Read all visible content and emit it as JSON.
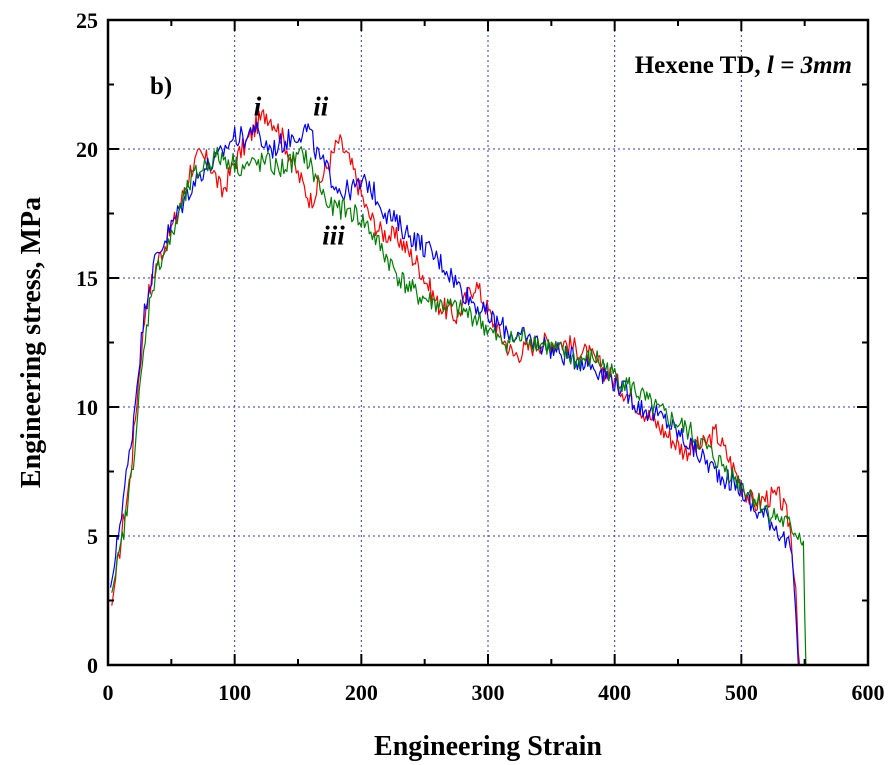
{
  "chart_data": {
    "type": "line",
    "title": "",
    "xlabel": "Engineering Strain",
    "ylabel": "Engineering stress, MPa",
    "xlim": [
      0,
      600
    ],
    "ylim": [
      0,
      25
    ],
    "xticks": [
      0,
      100,
      200,
      300,
      400,
      500,
      600
    ],
    "yticks": [
      0,
      5,
      10,
      15,
      20,
      25
    ],
    "grid": true,
    "panel_label": "b)",
    "annotation": {
      "prefix": "Hexene TD, ",
      "var": "l",
      "suffix": " = 3mm"
    },
    "curve_labels": [
      {
        "text": "i",
        "x": 118,
        "y": 21.3
      },
      {
        "text": "ii",
        "x": 168,
        "y": 21.3
      },
      {
        "text": "iii",
        "x": 178,
        "y": 16.3
      }
    ],
    "series": [
      {
        "color": "#ff0000",
        "x": [
          3,
          5,
          8,
          12,
          18,
          24,
          30,
          38,
          45,
          55,
          65,
          72,
          80,
          90,
          100,
          110,
          118,
          125,
          132,
          140,
          150,
          160,
          168,
          175,
          182,
          188,
          195,
          205,
          215,
          230,
          245,
          260,
          275,
          290,
          305,
          320,
          340,
          360,
          380,
          400,
          420,
          440,
          455,
          470,
          480,
          490,
          500,
          510,
          520,
          530,
          538,
          543,
          545,
          546
        ],
        "y": [
          2.3,
          3.0,
          4.0,
          5.5,
          7.5,
          11.0,
          14.0,
          15.5,
          16.3,
          17.5,
          19.2,
          19.7,
          19.5,
          18.3,
          19.5,
          20.3,
          21.0,
          21.4,
          21.0,
          20.2,
          19.0,
          18.0,
          18.8,
          19.5,
          20.3,
          19.8,
          19.0,
          17.5,
          16.8,
          16.5,
          15.5,
          14.0,
          13.5,
          14.8,
          13.2,
          12.0,
          12.5,
          12.5,
          12.0,
          11.0,
          10.0,
          9.0,
          8.3,
          8.5,
          9.0,
          8.0,
          7.0,
          6.2,
          6.5,
          6.5,
          5.5,
          3.0,
          0.5,
          0
        ]
      },
      {
        "color": "#0000ff",
        "x": [
          2,
          5,
          8,
          12,
          18,
          24,
          30,
          38,
          45,
          55,
          65,
          75,
          85,
          95,
          100,
          110,
          115,
          120,
          130,
          140,
          150,
          158,
          165,
          175,
          185,
          195,
          205,
          210,
          220,
          235,
          250,
          265,
          280,
          300,
          320,
          340,
          360,
          380,
          400,
          420,
          440,
          460,
          480,
          500,
          510,
          520,
          530,
          536,
          540,
          543,
          545
        ],
        "y": [
          3.0,
          3.8,
          5.0,
          6.5,
          8.5,
          11.5,
          14.2,
          15.8,
          16.5,
          17.5,
          18.5,
          19.2,
          19.5,
          20.2,
          20.5,
          20.4,
          21.0,
          20.3,
          20.0,
          20.3,
          20.6,
          20.8,
          19.8,
          19.0,
          18.3,
          18.5,
          18.7,
          18.3,
          17.5,
          16.8,
          16.2,
          15.5,
          14.5,
          13.5,
          12.8,
          12.5,
          12.0,
          11.7,
          11.0,
          10.0,
          9.5,
          8.5,
          7.5,
          6.8,
          6.0,
          5.8,
          5.2,
          4.7,
          4.3,
          2.0,
          0
        ]
      },
      {
        "color": "#008000",
        "x": [
          3,
          6,
          10,
          15,
          20,
          27,
          34,
          42,
          50,
          58,
          66,
          75,
          85,
          95,
          105,
          115,
          125,
          135,
          145,
          155,
          165,
          175,
          185,
          195,
          205,
          215,
          230,
          245,
          260,
          275,
          290,
          310,
          330,
          350,
          370,
          385,
          400,
          415,
          430,
          445,
          460,
          480,
          500,
          520,
          540,
          547,
          549,
          550,
          551
        ],
        "y": [
          2.8,
          3.5,
          4.5,
          6.0,
          8.0,
          11.5,
          14.5,
          15.8,
          16.5,
          17.8,
          18.8,
          19.3,
          19.7,
          19.6,
          19.3,
          19.4,
          19.5,
          19.2,
          19.5,
          19.8,
          18.8,
          17.7,
          17.7,
          17.5,
          17.0,
          16.2,
          15.0,
          14.3,
          14.0,
          13.8,
          13.5,
          12.5,
          12.7,
          12.3,
          11.8,
          11.9,
          11.2,
          10.7,
          10.0,
          9.5,
          9.0,
          8.0,
          7.0,
          6.0,
          5.3,
          5.0,
          4.8,
          2.0,
          0
        ]
      }
    ]
  }
}
